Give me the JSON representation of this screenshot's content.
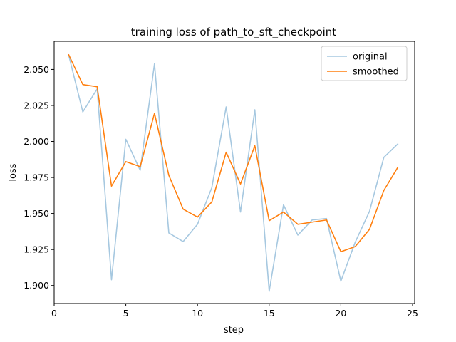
{
  "chart_data": {
    "type": "line",
    "title": "training loss of path_to_sft_checkpoint",
    "xlabel": "step",
    "ylabel": "loss",
    "xlim": [
      0.0,
      25.15
    ],
    "ylim": [
      1.8875,
      2.0695
    ],
    "xticks": [
      0,
      5,
      10,
      15,
      20,
      25
    ],
    "yticks": [
      1.9,
      1.925,
      1.95,
      1.975,
      2.0,
      2.025,
      2.05
    ],
    "ytick_labels": [
      "1.900",
      "1.925",
      "1.950",
      "1.975",
      "2.000",
      "2.025",
      "2.050"
    ],
    "x": [
      1,
      2,
      3,
      4,
      5,
      6,
      7,
      8,
      9,
      10,
      11,
      12,
      13,
      14,
      15,
      16,
      17,
      18,
      19,
      20,
      21,
      22,
      23,
      24
    ],
    "series": [
      {
        "name": "original",
        "color": "#a6c8e0",
        "values": [
          2.0605,
          2.0205,
          2.0365,
          1.904,
          2.0015,
          1.98,
          2.054,
          1.9365,
          1.9305,
          1.9425,
          1.968,
          2.024,
          1.951,
          2.022,
          1.896,
          1.956,
          1.935,
          1.9455,
          1.9465,
          1.903,
          1.93,
          1.9515,
          1.989,
          1.9985
        ]
      },
      {
        "name": "smoothed",
        "color": "#ff7f0e",
        "values": [
          2.0605,
          2.0395,
          2.038,
          1.969,
          1.986,
          1.9825,
          2.0195,
          1.9765,
          1.953,
          1.9475,
          1.958,
          1.9925,
          1.9705,
          1.997,
          1.945,
          1.951,
          1.9425,
          1.944,
          1.9455,
          1.9235,
          1.927,
          1.939,
          1.966,
          1.9825
        ]
      }
    ],
    "legend_position": "top-right"
  }
}
